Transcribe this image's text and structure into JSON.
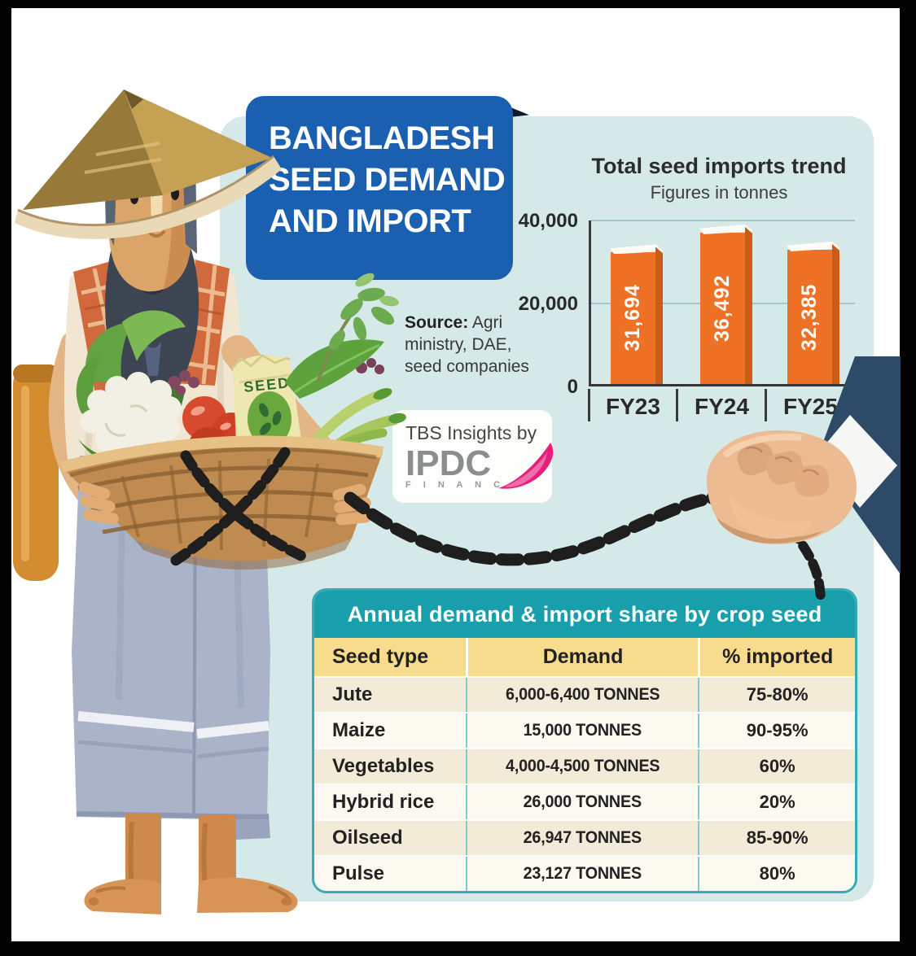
{
  "ribbon": {
    "lines": [
      "BANGLADESH",
      "SEED DEMAND",
      "AND IMPORT"
    ],
    "bg_color": "#1b5fb1"
  },
  "source": {
    "label": "Source:",
    "text": " Agri ministry, DAE, seed companies"
  },
  "tbs": {
    "line": "TBS Insights by",
    "brand": "IPDC",
    "brand_sub": "F I N A N C E",
    "brand_color": "#8b8e91",
    "swoosh_color": "#e51f7a"
  },
  "chart_data": [
    {
      "type": "bar",
      "title": "Total seed imports trend",
      "subtitle": "Figures in tonnes",
      "categories": [
        "FY23",
        "FY24",
        "FY25"
      ],
      "values": [
        31694,
        36492,
        32385
      ],
      "display_values": [
        "31,694",
        "36,492",
        "32,385"
      ],
      "y_ticks": [
        {
          "label": "40,000",
          "value": 40000
        },
        {
          "label": "20,000",
          "value": 20000
        },
        {
          "label": "0",
          "value": 0
        }
      ],
      "ylim": [
        0,
        40000
      ],
      "grid": true,
      "legend_position": "none",
      "bar_color": "#ee7125",
      "bar_side_color": "#ca5d16",
      "bar_top_color": "#fdfcf6",
      "value_labels": "inside-vertical-white"
    },
    {
      "type": "table",
      "title": "Annual demand & import share by crop seed",
      "columns": [
        "Seed type",
        "Demand",
        "% imported"
      ],
      "rows": [
        [
          "Jute",
          "6,000-6,400 TONNES",
          "75-80%"
        ],
        [
          "Maize",
          "15,000 TONNES",
          "90-95%"
        ],
        [
          "Vegetables",
          "4,000-4,500 TONNES",
          "60%"
        ],
        [
          "Hybrid rice",
          "26,000 TONNES",
          "20%"
        ],
        [
          "Oilseed",
          "26,947 TONNES",
          "85-90%"
        ],
        [
          "Pulse",
          "23,127 TONNES",
          "80%"
        ]
      ],
      "title_bg": "#189fab",
      "header_bg": "#f8dc8e",
      "row_alt_bg": "#f2ebd8",
      "row_bg": "#fcfaf0"
    }
  ],
  "illustration": {
    "seed_bag_label": "SEED",
    "farmer": "farmer holding basket of vegetables and seed bag",
    "chain": "black chain wrapped around basket, pulled to the right",
    "hand": "suited hand gripping chain"
  },
  "colors": {
    "panel_bg": "#d4e9e8",
    "frame": "#000000",
    "page_bg": "#ffffff"
  }
}
